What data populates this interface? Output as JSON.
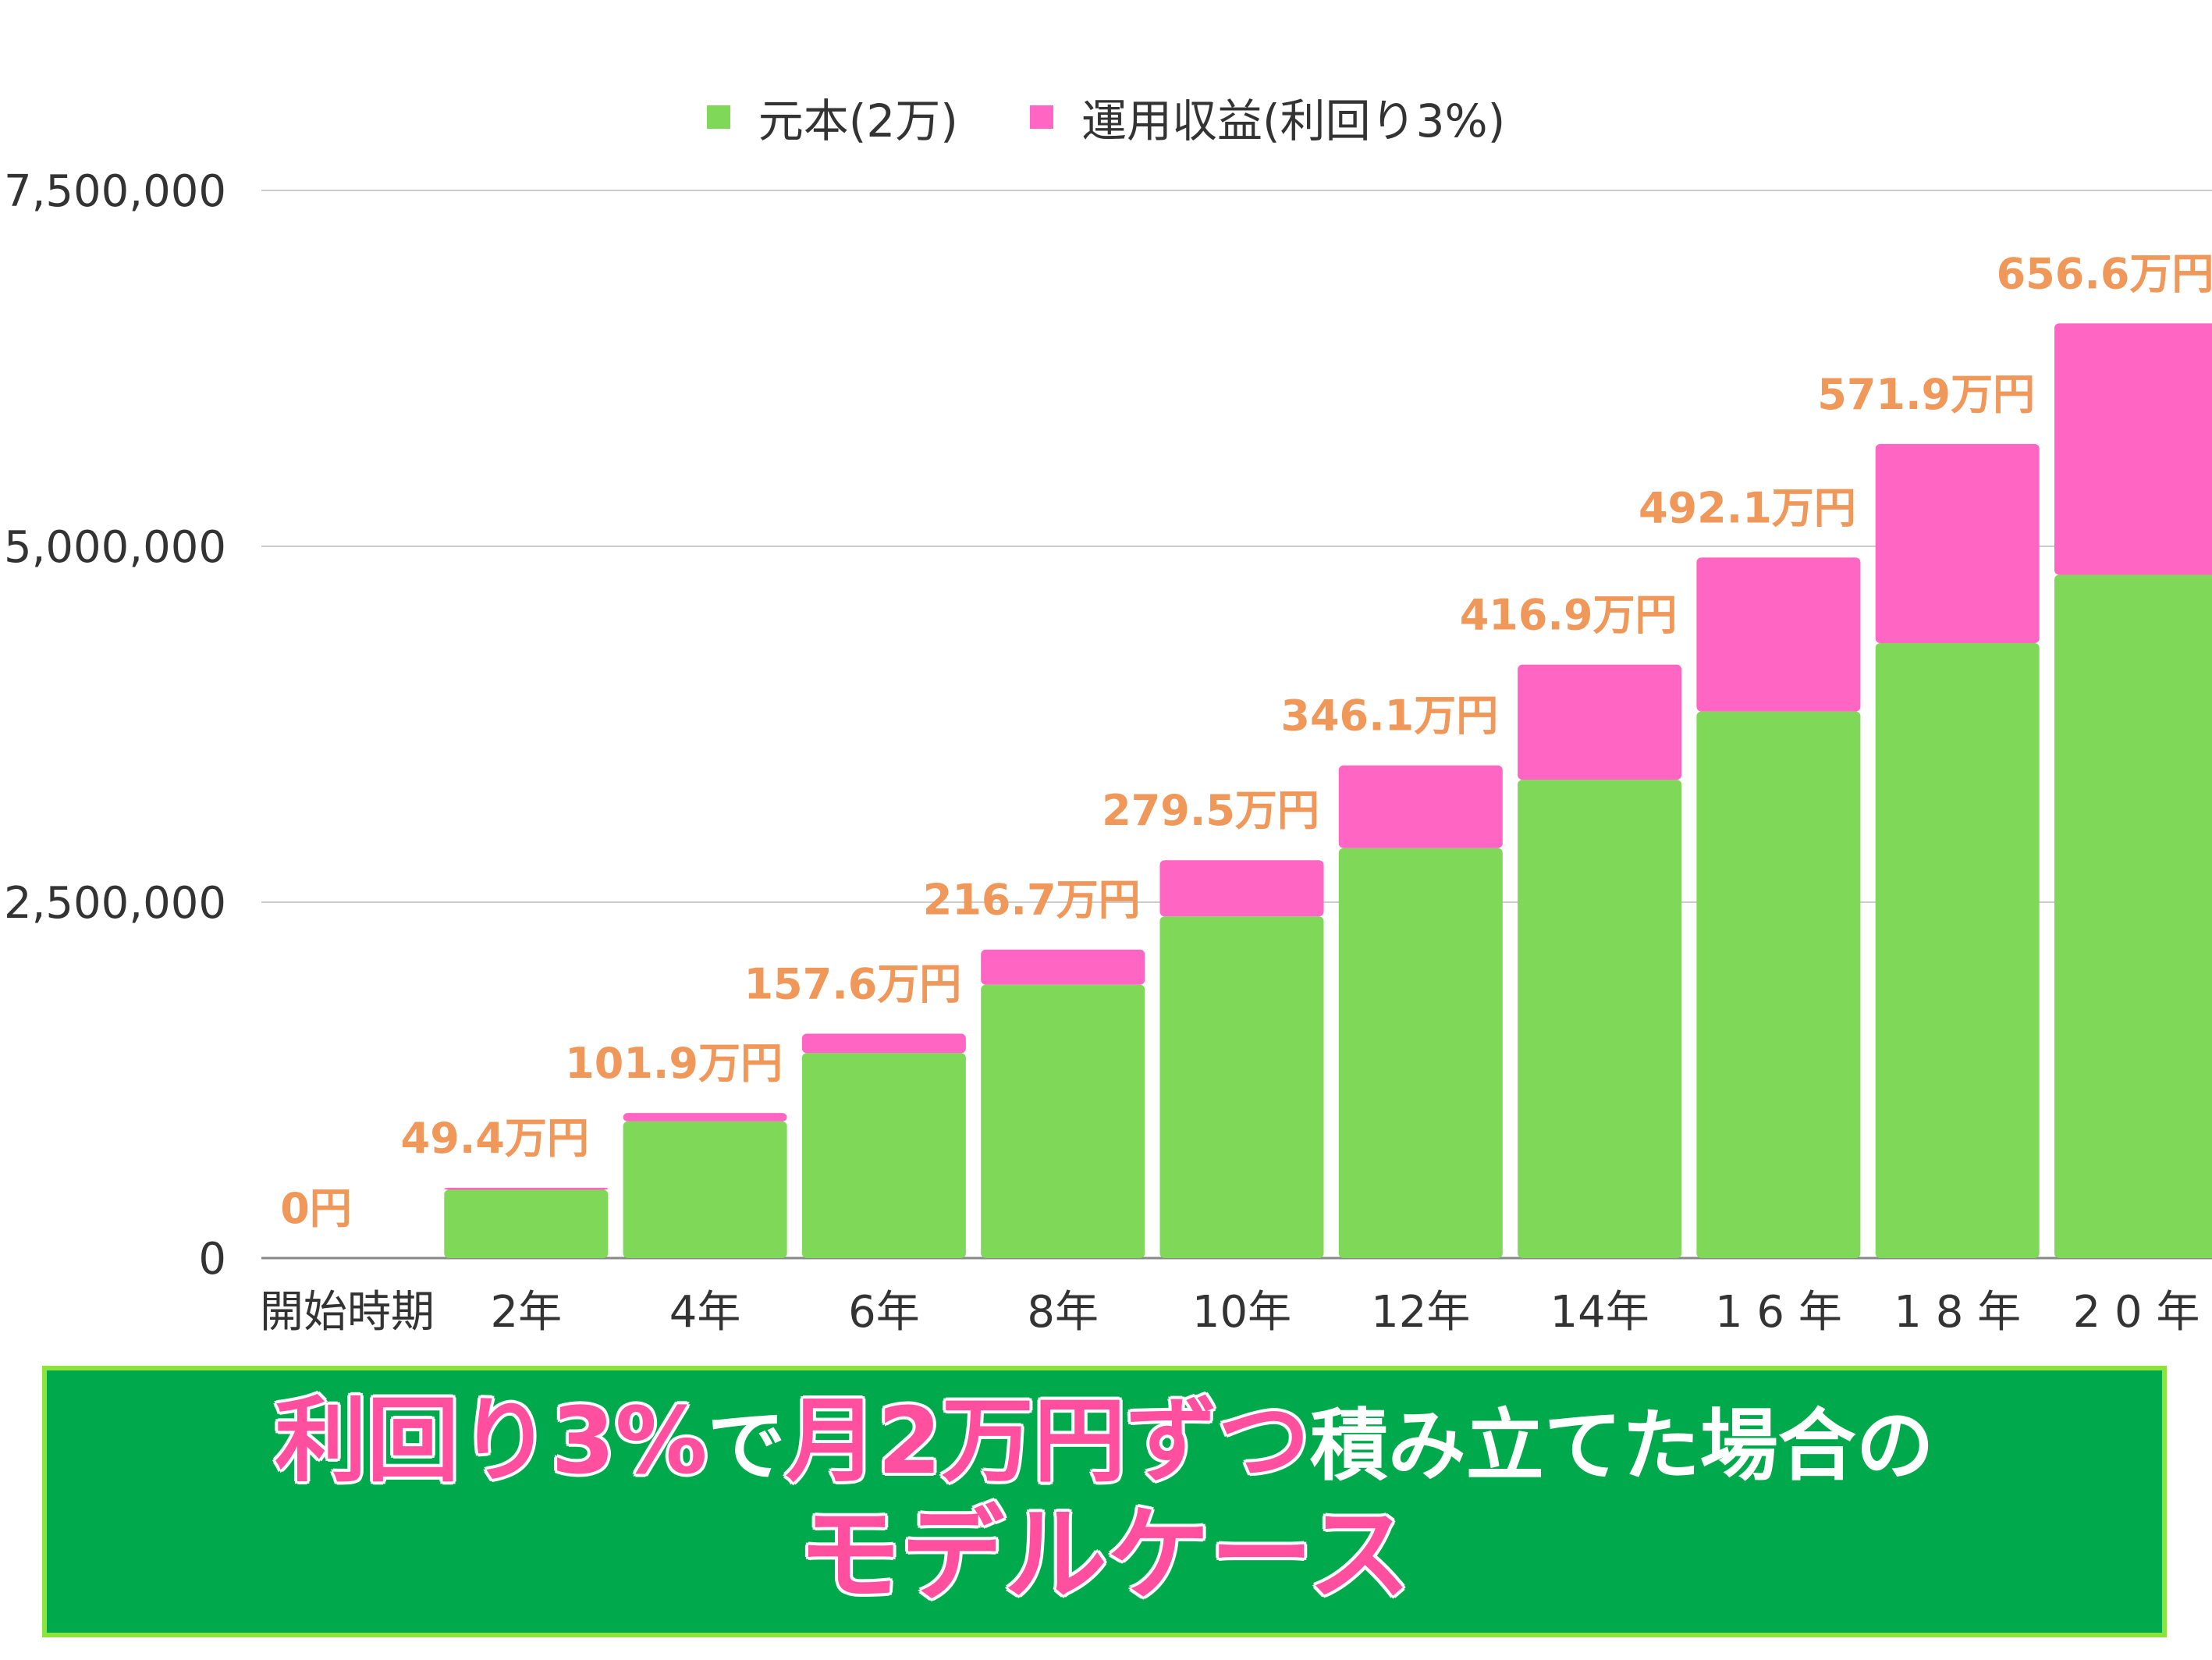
{
  "chart_data": {
    "type": "bar",
    "stacked": true,
    "categories": [
      "開始時期",
      "2年",
      "4年",
      "6年",
      "8年",
      "10年",
      "12年",
      "14年",
      "1 6 年",
      "1 8 年",
      "2 0 年"
    ],
    "series": [
      {
        "name": "元本(2万)",
        "color": "#80d858",
        "values": [
          0,
          480000,
          960000,
          1440000,
          1920000,
          2400000,
          2880000,
          3360000,
          3840000,
          4320000,
          4800000
        ]
      },
      {
        "name": "運用収益(利回り3%)",
        "color": "#ff66c4",
        "values": [
          0,
          14000,
          59000,
          136000,
          247000,
          395000,
          581000,
          809000,
          1081000,
          1399000,
          1766000
        ]
      }
    ],
    "data_labels": [
      "0円",
      "49.4万円",
      "101.9万円",
      "157.6万円",
      "216.7万円",
      "279.5万円",
      "346.1万円",
      "416.9万円",
      "492.1万円",
      "571.9万円",
      "656.6万円"
    ],
    "label_color": "#f0975a",
    "y_ticks": [
      "0",
      "2,500,000",
      "5,000,000",
      "7,500,000"
    ],
    "y_tick_values": [
      0,
      2500000,
      5000000,
      7500000
    ],
    "ylim": [
      0,
      7500000
    ],
    "grid": true,
    "legend_position": "top-center"
  },
  "legend": {
    "principal": "元本(2万)",
    "returns": "運用収益(利回り3%)"
  },
  "banner": {
    "pink_part_1": "利回り3%",
    "white_part_1": "で",
    "pink_part_2": "月2万円ずつ",
    "white_part_2": "積み立てた場合の",
    "pink_line_2": "モデルケース",
    "background": "#00a94b",
    "border": "#8be33c"
  }
}
